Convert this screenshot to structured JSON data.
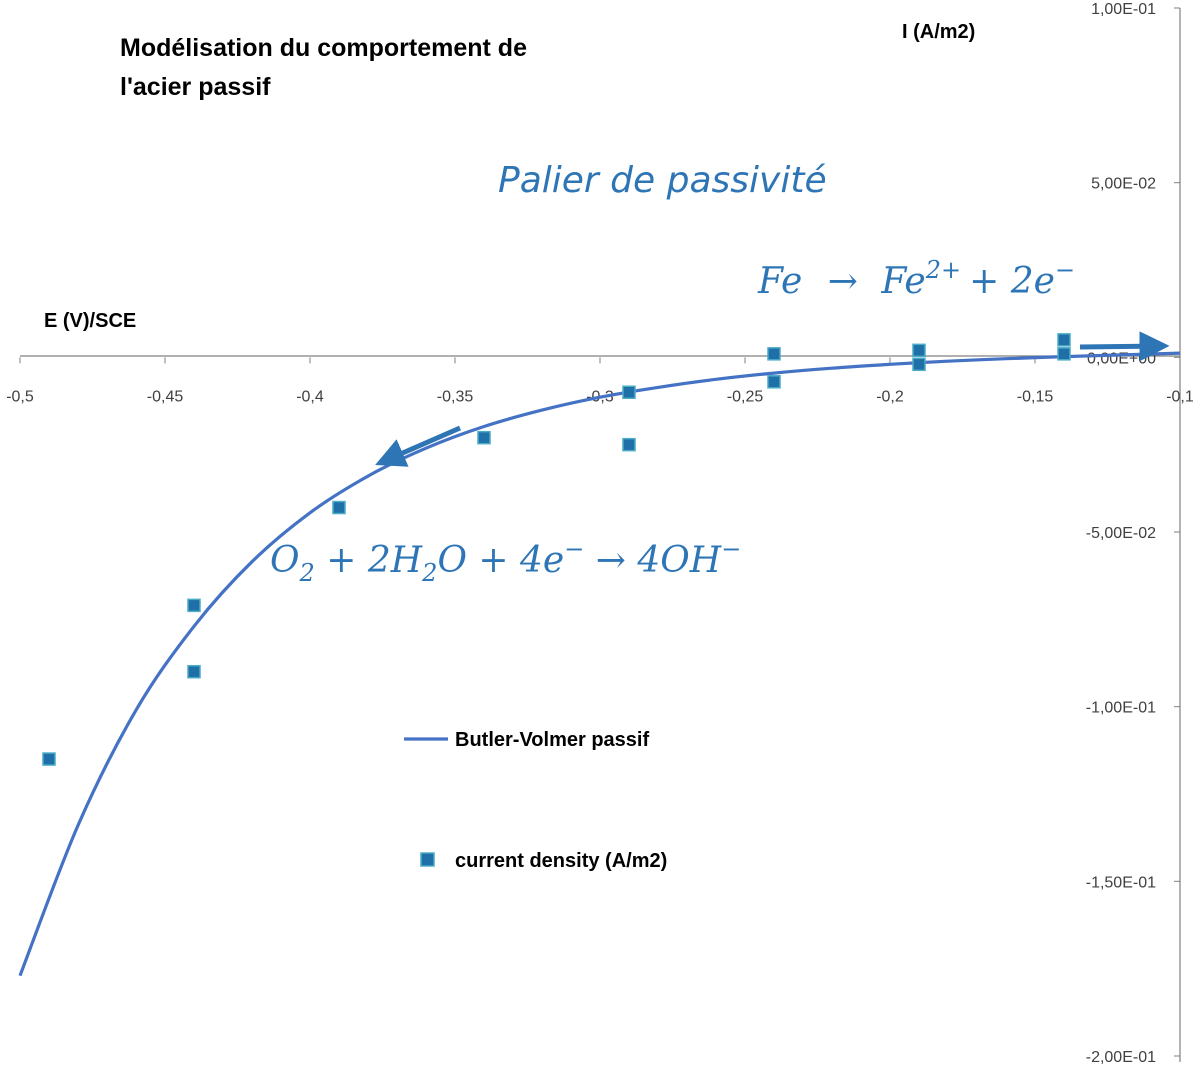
{
  "chart_data": {
    "type": "scatter",
    "title_lines": [
      "Modélisation du comportement de",
      "l'acier passif"
    ],
    "xlabel": "E (V)/SCE",
    "ylabel": "I (A/m2)",
    "xlim": [
      -0.5,
      -0.1
    ],
    "ylim": [
      -0.2,
      0.1
    ],
    "x_ticks": [
      -0.5,
      -0.45,
      -0.4,
      -0.35,
      -0.3,
      -0.25,
      -0.2,
      -0.15,
      -0.1
    ],
    "x_tick_labels": [
      "-0,5",
      "-0,45",
      "-0,4",
      "-0,35",
      "-0,3",
      "-0,25",
      "-0,2",
      "-0,15",
      "-0,1"
    ],
    "y_ticks": [
      0.1,
      0.05,
      0.0,
      -0.05,
      -0.1,
      -0.15,
      -0.2
    ],
    "y_tick_labels": [
      "1,00E-01",
      "5,00E-02",
      "0,00E+00",
      "-5,00E-02",
      "-1,00E-01",
      "-1,50E-01",
      "-2,00E-01"
    ],
    "series": [
      {
        "name": "Butler-Volmer passif",
        "kind": "line",
        "color": "#4472C4",
        "x": [
          -0.5,
          -0.48,
          -0.46,
          -0.44,
          -0.42,
          -0.4,
          -0.38,
          -0.36,
          -0.34,
          -0.32,
          -0.3,
          -0.28,
          -0.26,
          -0.24,
          -0.22,
          -0.2,
          -0.18,
          -0.16,
          -0.14,
          -0.12,
          -0.1
        ],
        "y": [
          -0.177,
          -0.134,
          -0.101,
          -0.077,
          -0.0585,
          -0.0445,
          -0.034,
          -0.026,
          -0.0198,
          -0.0151,
          -0.0114,
          -0.0086,
          -0.0063,
          -0.0045,
          -0.0031,
          -0.002,
          -0.0011,
          -0.0004,
          0.0002,
          0.0007,
          0.0012
        ]
      },
      {
        "name": "current density (A/m2)",
        "kind": "markers",
        "color": "#1F6FA8",
        "x": [
          -0.49,
          -0.44,
          -0.44,
          -0.39,
          -0.34,
          -0.29,
          -0.29,
          -0.24,
          -0.24,
          -0.19,
          -0.19,
          -0.14,
          -0.14
        ],
        "y": [
          -0.115,
          -0.071,
          -0.09,
          -0.043,
          -0.023,
          -0.01,
          -0.025,
          0.001,
          -0.007,
          0.002,
          -0.002,
          0.005,
          0.001
        ]
      }
    ],
    "legend": [
      "Butler-Volmer passif",
      "current density (A/m2)"
    ],
    "legend_position": "center-left",
    "grid": false,
    "annotations": {
      "plateau": "Palier de passivité",
      "anodic_reaction": {
        "lhs": "Fe",
        "arrow": "→",
        "rhs": "Fe",
        "sup": "2+",
        "plus": "+ 2e",
        "minus_sup": "−"
      },
      "cathodic_reaction": {
        "o": "O",
        "o_sub": "2",
        "p1": " + 2H",
        "h_sub": "2",
        "p2": "O + 4e",
        "e_sup": "−",
        "arrow": " → 4OH",
        "oh_sup": "−"
      }
    },
    "annotation_color": "#2E75B6"
  }
}
